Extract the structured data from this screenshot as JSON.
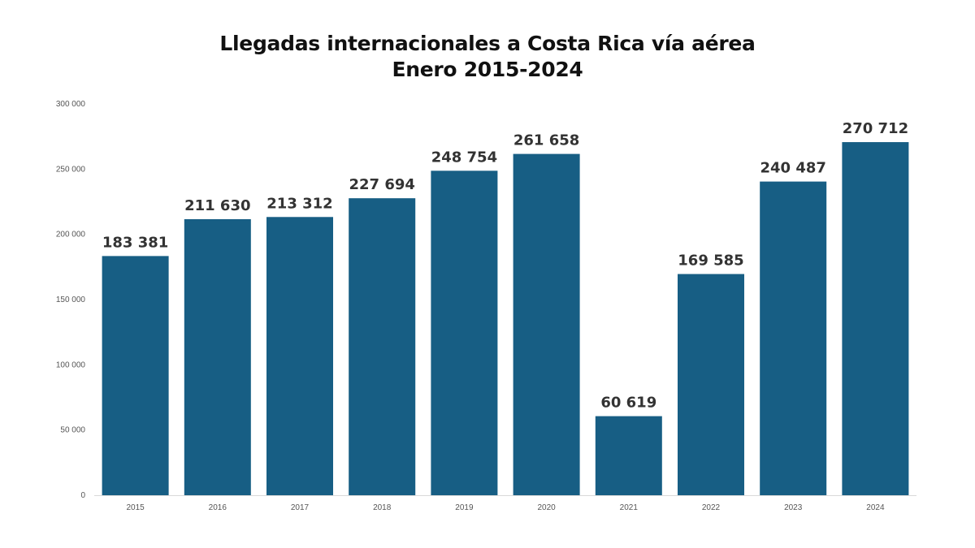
{
  "chart_data": {
    "type": "bar",
    "title": "Llegadas internacionales a Costa Rica vía aérea",
    "subtitle": "Enero 2015-2024",
    "xlabel": "",
    "ylabel": "",
    "categories": [
      "2015",
      "2016",
      "2017",
      "2018",
      "2019",
      "2020",
      "2021",
      "2022",
      "2023",
      "2024"
    ],
    "values": [
      183381,
      211630,
      213312,
      227694,
      248754,
      261658,
      60619,
      169585,
      240487,
      270712
    ],
    "value_labels": [
      "183 381",
      "211 630",
      "213 312",
      "227 694",
      "248 754",
      "261 658",
      "60 619",
      "169 585",
      "240 487",
      "270 712"
    ],
    "ylim": [
      0,
      300000
    ],
    "y_ticks": [
      0,
      50000,
      100000,
      150000,
      200000,
      250000,
      300000
    ],
    "y_tick_labels": [
      "0",
      "50 000",
      "100 000",
      "150 000",
      "200 000",
      "250 000",
      "300 000"
    ],
    "grid": false,
    "legend": "none",
    "bar_color": "#175e84"
  }
}
